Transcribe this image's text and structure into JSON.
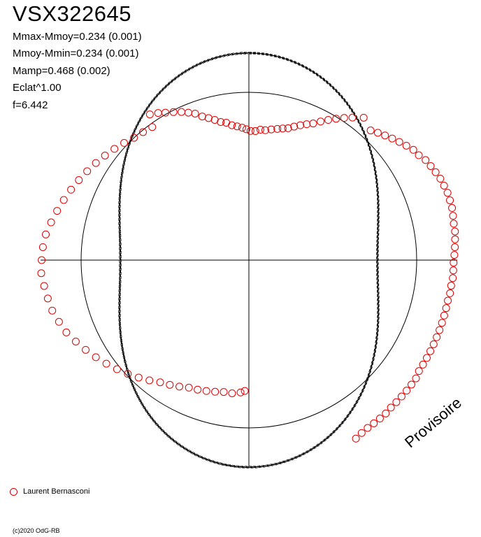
{
  "chart_data": {
    "type": "scatter",
    "projection": "polar",
    "title": "VSX322645",
    "stats": [
      "Mmax-Mmoy=0.234 (0.001)",
      "Mmoy-Mmin=0.234 (0.001)",
      "Mamp=0.468 (0.002)",
      "Eclat^1.00",
      "f=6.442"
    ],
    "watermark": "Provisoire",
    "copyright": "(c)2020 OdG-RB",
    "grid": true,
    "reference_circle": true,
    "model": {
      "mean": 1.0,
      "half_amplitude": 0.234,
      "harmonic": 2,
      "phase_offset": 0.0
    },
    "series": [
      {
        "name": "Laurent Bernasconi",
        "color": "#e00000",
        "points": [
          {
            "phase": 0.505,
            "r": 0.78
          },
          {
            "phase": 0.51,
            "r": 0.79
          },
          {
            "phase": 0.52,
            "r": 0.8
          },
          {
            "phase": 0.53,
            "r": 0.8
          },
          {
            "phase": 0.54,
            "r": 0.81
          },
          {
            "phase": 0.55,
            "r": 0.82
          },
          {
            "phase": 0.56,
            "r": 0.83
          },
          {
            "phase": 0.57,
            "r": 0.84
          },
          {
            "phase": 0.58,
            "r": 0.86
          },
          {
            "phase": 0.59,
            "r": 0.88
          },
          {
            "phase": 0.6,
            "r": 0.9
          },
          {
            "phase": 0.61,
            "r": 0.93
          },
          {
            "phase": 0.62,
            "r": 0.96
          },
          {
            "phase": 0.63,
            "r": 0.99
          },
          {
            "phase": 0.64,
            "r": 1.02
          },
          {
            "phase": 0.65,
            "r": 1.05
          },
          {
            "phase": 0.66,
            "r": 1.08
          },
          {
            "phase": 0.67,
            "r": 1.11
          },
          {
            "phase": 0.68,
            "r": 1.14
          },
          {
            "phase": 0.69,
            "r": 1.17
          },
          {
            "phase": 0.7,
            "r": 1.19
          },
          {
            "phase": 0.71,
            "r": 1.21
          },
          {
            "phase": 0.72,
            "r": 1.22
          },
          {
            "phase": 0.73,
            "r": 1.23
          },
          {
            "phase": 0.74,
            "r": 1.24
          },
          {
            "phase": 0.75,
            "r": 1.235
          },
          {
            "phase": 0.76,
            "r": 1.23
          },
          {
            "phase": 0.77,
            "r": 1.22
          },
          {
            "phase": 0.78,
            "r": 1.2
          },
          {
            "phase": 0.79,
            "r": 1.18
          },
          {
            "phase": 0.8,
            "r": 1.16
          },
          {
            "phase": 0.81,
            "r": 1.14
          },
          {
            "phase": 0.82,
            "r": 1.12
          },
          {
            "phase": 0.83,
            "r": 1.1
          },
          {
            "phase": 0.84,
            "r": 1.08
          },
          {
            "phase": 0.85,
            "r": 1.06
          },
          {
            "phase": 0.86,
            "r": 1.04
          },
          {
            "phase": 0.87,
            "r": 1.02
          },
          {
            "phase": 0.88,
            "r": 1.0
          },
          {
            "phase": 0.89,
            "r": 0.99
          },
          {
            "phase": 0.9,
            "r": 0.98
          },
          {
            "phase": 0.905,
            "r": 1.05
          },
          {
            "phase": 0.912,
            "r": 1.03
          },
          {
            "phase": 0.918,
            "r": 1.01
          },
          {
            "phase": 0.925,
            "r": 0.99
          },
          {
            "phase": 0.932,
            "r": 0.97
          },
          {
            "phase": 0.938,
            "r": 0.95
          },
          {
            "phase": 0.944,
            "r": 0.93
          },
          {
            "phase": 0.95,
            "r": 0.9
          },
          {
            "phase": 0.956,
            "r": 0.88
          },
          {
            "phase": 0.962,
            "r": 0.86
          },
          {
            "phase": 0.968,
            "r": 0.84
          },
          {
            "phase": 0.974,
            "r": 0.83
          },
          {
            "phase": 0.98,
            "r": 0.81
          },
          {
            "phase": 0.986,
            "r": 0.8
          },
          {
            "phase": 0.992,
            "r": 0.79
          },
          {
            "phase": 0.997,
            "r": 0.78
          },
          {
            "phase": 0.002,
            "r": 0.77
          },
          {
            "phase": 0.008,
            "r": 0.77
          },
          {
            "phase": 0.014,
            "r": 0.78
          },
          {
            "phase": 0.02,
            "r": 0.78
          },
          {
            "phase": 0.027,
            "r": 0.79
          },
          {
            "phase": 0.034,
            "r": 0.8
          },
          {
            "phase": 0.04,
            "r": 0.81
          },
          {
            "phase": 0.046,
            "r": 0.82
          },
          {
            "phase": 0.052,
            "r": 0.84
          },
          {
            "phase": 0.058,
            "r": 0.86
          },
          {
            "phase": 0.064,
            "r": 0.88
          },
          {
            "phase": 0.07,
            "r": 0.9
          },
          {
            "phase": 0.076,
            "r": 0.93
          },
          {
            "phase": 0.082,
            "r": 0.96
          },
          {
            "phase": 0.088,
            "r": 0.99
          },
          {
            "phase": 0.094,
            "r": 1.02
          },
          {
            "phase": 0.1,
            "r": 1.05
          },
          {
            "phase": 0.108,
            "r": 1.09
          },
          {
            "phase": 0.12,
            "r": 1.06
          },
          {
            "phase": 0.126,
            "r": 1.08
          },
          {
            "phase": 0.132,
            "r": 1.1
          },
          {
            "phase": 0.138,
            "r": 1.12
          },
          {
            "phase": 0.144,
            "r": 1.14
          },
          {
            "phase": 0.15,
            "r": 1.16
          },
          {
            "phase": 0.156,
            "r": 1.18
          },
          {
            "phase": 0.162,
            "r": 1.19
          },
          {
            "phase": 0.168,
            "r": 1.21
          },
          {
            "phase": 0.174,
            "r": 1.22
          },
          {
            "phase": 0.18,
            "r": 1.23
          },
          {
            "phase": 0.186,
            "r": 1.24
          },
          {
            "phase": 0.192,
            "r": 1.245
          },
          {
            "phase": 0.198,
            "r": 1.25
          },
          {
            "phase": 0.204,
            "r": 1.25
          },
          {
            "phase": 0.21,
            "r": 1.25
          },
          {
            "phase": 0.216,
            "r": 1.245
          },
          {
            "phase": 0.222,
            "r": 1.24
          },
          {
            "phase": 0.228,
            "r": 1.24
          },
          {
            "phase": 0.234,
            "r": 1.235
          },
          {
            "phase": 0.24,
            "r": 1.23
          },
          {
            "phase": 0.246,
            "r": 1.225
          },
          {
            "phase": 0.252,
            "r": 1.22
          },
          {
            "phase": 0.258,
            "r": 1.22
          },
          {
            "phase": 0.264,
            "r": 1.22
          },
          {
            "phase": 0.27,
            "r": 1.215
          },
          {
            "phase": 0.276,
            "r": 1.215
          },
          {
            "phase": 0.282,
            "r": 1.21
          },
          {
            "phase": 0.288,
            "r": 1.21
          },
          {
            "phase": 0.294,
            "r": 1.21
          },
          {
            "phase": 0.3,
            "r": 1.21
          },
          {
            "phase": 0.306,
            "r": 1.21
          },
          {
            "phase": 0.312,
            "r": 1.21
          },
          {
            "phase": 0.318,
            "r": 1.21
          },
          {
            "phase": 0.324,
            "r": 1.21
          },
          {
            "phase": 0.33,
            "r": 1.21
          },
          {
            "phase": 0.336,
            "r": 1.21
          },
          {
            "phase": 0.342,
            "r": 1.21
          },
          {
            "phase": 0.348,
            "r": 1.22
          },
          {
            "phase": 0.354,
            "r": 1.22
          },
          {
            "phase": 0.36,
            "r": 1.22
          },
          {
            "phase": 0.366,
            "r": 1.22
          },
          {
            "phase": 0.372,
            "r": 1.22
          },
          {
            "phase": 0.378,
            "r": 1.22
          },
          {
            "phase": 0.384,
            "r": 1.225
          },
          {
            "phase": 0.39,
            "r": 1.225
          },
          {
            "phase": 0.396,
            "r": 1.225
          },
          {
            "phase": 0.402,
            "r": 1.225
          },
          {
            "phase": 0.408,
            "r": 1.23
          },
          {
            "phase": 0.414,
            "r": 1.24
          }
        ]
      }
    ]
  }
}
